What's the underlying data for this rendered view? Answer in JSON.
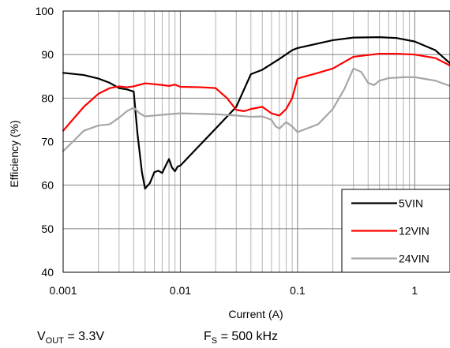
{
  "chart_data": {
    "type": "line",
    "title": "",
    "xlabel": "Current (A)",
    "ylabel": "Efficiency (%)",
    "x_scale": "log",
    "xlim": [
      0.001,
      2
    ],
    "ylim": [
      40,
      100
    ],
    "grid": true,
    "legend_position": "bottom-right",
    "x_ticks": [
      0.001,
      0.01,
      0.1,
      1
    ],
    "x_tick_labels": [
      "0.001",
      "0.01",
      "0.1",
      "1"
    ],
    "y_ticks": [
      40,
      50,
      60,
      70,
      80,
      90,
      100
    ],
    "y_tick_labels": [
      "40",
      "50",
      "60",
      "70",
      "80",
      "90",
      "100"
    ],
    "series": [
      {
        "name": "5VIN",
        "color": "#000000",
        "points": [
          [
            0.001,
            85.8
          ],
          [
            0.0015,
            85.3
          ],
          [
            0.002,
            84.5
          ],
          [
            0.0025,
            83.5
          ],
          [
            0.003,
            82.3
          ],
          [
            0.0035,
            82.0
          ],
          [
            0.004,
            81.5
          ],
          [
            0.0043,
            72.0
          ],
          [
            0.0047,
            63.0
          ],
          [
            0.005,
            59.2
          ],
          [
            0.0055,
            60.5
          ],
          [
            0.006,
            63.0
          ],
          [
            0.0065,
            63.3
          ],
          [
            0.007,
            62.8
          ],
          [
            0.0075,
            64.5
          ],
          [
            0.008,
            66.0
          ],
          [
            0.0085,
            64.0
          ],
          [
            0.009,
            63.2
          ],
          [
            0.0095,
            64.3
          ],
          [
            0.01,
            64.5
          ],
          [
            0.02,
            73.0
          ],
          [
            0.03,
            78.0
          ],
          [
            0.04,
            85.5
          ],
          [
            0.05,
            86.5
          ],
          [
            0.07,
            89.0
          ],
          [
            0.09,
            91.0
          ],
          [
            0.1,
            91.5
          ],
          [
            0.2,
            93.3
          ],
          [
            0.3,
            93.9
          ],
          [
            0.5,
            94.0
          ],
          [
            0.7,
            93.8
          ],
          [
            1.0,
            93.0
          ],
          [
            1.5,
            91.0
          ],
          [
            2.0,
            88.0
          ]
        ]
      },
      {
        "name": "12VIN",
        "color": "#ff0000",
        "points": [
          [
            0.001,
            72.5
          ],
          [
            0.0015,
            78.0
          ],
          [
            0.002,
            81.0
          ],
          [
            0.0025,
            82.3
          ],
          [
            0.003,
            82.7
          ],
          [
            0.0035,
            82.5
          ],
          [
            0.004,
            82.7
          ],
          [
            0.005,
            83.4
          ],
          [
            0.006,
            83.2
          ],
          [
            0.007,
            83.0
          ],
          [
            0.008,
            82.8
          ],
          [
            0.009,
            83.1
          ],
          [
            0.01,
            82.6
          ],
          [
            0.015,
            82.5
          ],
          [
            0.02,
            82.3
          ],
          [
            0.025,
            80.0
          ],
          [
            0.03,
            77.3
          ],
          [
            0.035,
            77.0
          ],
          [
            0.04,
            77.5
          ],
          [
            0.05,
            78.0
          ],
          [
            0.06,
            76.5
          ],
          [
            0.07,
            76.0
          ],
          [
            0.08,
            77.5
          ],
          [
            0.09,
            80.0
          ],
          [
            0.1,
            84.5
          ],
          [
            0.15,
            85.8
          ],
          [
            0.2,
            86.8
          ],
          [
            0.3,
            89.5
          ],
          [
            0.5,
            90.2
          ],
          [
            0.7,
            90.2
          ],
          [
            1.0,
            90.0
          ],
          [
            1.5,
            89.2
          ],
          [
            2.0,
            87.5
          ]
        ]
      },
      {
        "name": "24VIN",
        "color": "#a6a6a6",
        "points": [
          [
            0.001,
            67.8
          ],
          [
            0.0015,
            72.5
          ],
          [
            0.002,
            73.7
          ],
          [
            0.0025,
            74.0
          ],
          [
            0.003,
            75.5
          ],
          [
            0.0035,
            77.0
          ],
          [
            0.004,
            77.8
          ],
          [
            0.0045,
            76.5
          ],
          [
            0.005,
            75.8
          ],
          [
            0.006,
            76.0
          ],
          [
            0.008,
            76.3
          ],
          [
            0.01,
            76.5
          ],
          [
            0.02,
            76.3
          ],
          [
            0.03,
            76.0
          ],
          [
            0.04,
            75.7
          ],
          [
            0.05,
            75.8
          ],
          [
            0.06,
            75.0
          ],
          [
            0.065,
            73.5
          ],
          [
            0.07,
            73.0
          ],
          [
            0.08,
            74.5
          ],
          [
            0.09,
            73.5
          ],
          [
            0.1,
            72.2
          ],
          [
            0.15,
            74.0
          ],
          [
            0.2,
            77.5
          ],
          [
            0.25,
            82.0
          ],
          [
            0.3,
            86.8
          ],
          [
            0.35,
            86.0
          ],
          [
            0.4,
            83.5
          ],
          [
            0.45,
            83.0
          ],
          [
            0.5,
            84.0
          ],
          [
            0.6,
            84.6
          ],
          [
            0.8,
            84.8
          ],
          [
            1.0,
            84.8
          ],
          [
            1.5,
            84.0
          ],
          [
            2.0,
            82.8
          ]
        ]
      }
    ]
  },
  "conditions": {
    "vout": {
      "sym": "V",
      "sub": "OUT",
      "rest": " = 3.3V"
    },
    "fs": {
      "sym": "F",
      "sub": "S",
      "rest": " = 500 kHz"
    }
  }
}
